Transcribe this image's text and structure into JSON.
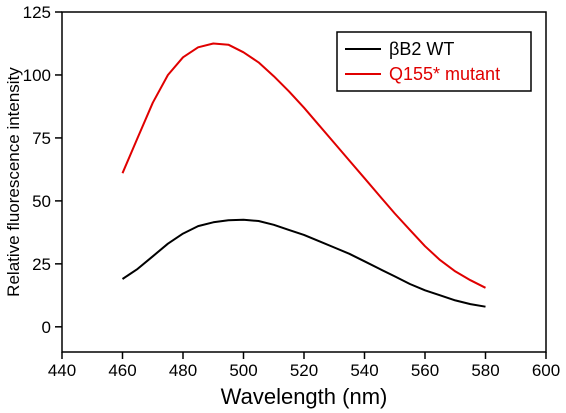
{
  "chart_data": {
    "type": "line",
    "xlabel": "Wavelength (nm)",
    "ylabel": "Relative fluorescence intensity",
    "xlim": [
      440,
      600
    ],
    "ylim": [
      -10,
      125
    ],
    "xticks": [
      440,
      460,
      480,
      500,
      520,
      540,
      560,
      580,
      600
    ],
    "yticks": [
      0,
      25,
      50,
      75,
      100,
      125
    ],
    "grid": false,
    "legend_position": "top-right",
    "series": [
      {
        "name": "βB2 WT",
        "color": "#000000",
        "x": [
          460,
          465,
          470,
          475,
          480,
          485,
          490,
          495,
          500,
          505,
          510,
          515,
          520,
          525,
          530,
          535,
          540,
          545,
          550,
          555,
          560,
          565,
          570,
          575,
          580
        ],
        "y": [
          19,
          23,
          28,
          33,
          37,
          40,
          41.5,
          42.3,
          42.5,
          42,
          40.5,
          38.5,
          36.5,
          34,
          31.5,
          29,
          26,
          23,
          20,
          17,
          14.5,
          12.5,
          10.5,
          9,
          8
        ]
      },
      {
        "name": "Q155* mutant",
        "color": "#e00000",
        "x": [
          460,
          465,
          470,
          475,
          480,
          485,
          490,
          495,
          500,
          505,
          510,
          515,
          520,
          525,
          530,
          535,
          540,
          545,
          550,
          555,
          560,
          565,
          570,
          575,
          580
        ],
        "y": [
          61,
          75,
          89,
          100,
          107,
          111,
          112.5,
          112,
          109,
          105,
          99.5,
          93.5,
          87,
          80,
          73,
          66,
          59,
          52,
          45,
          38.5,
          32,
          26.5,
          22,
          18.5,
          15.5
        ]
      }
    ]
  }
}
